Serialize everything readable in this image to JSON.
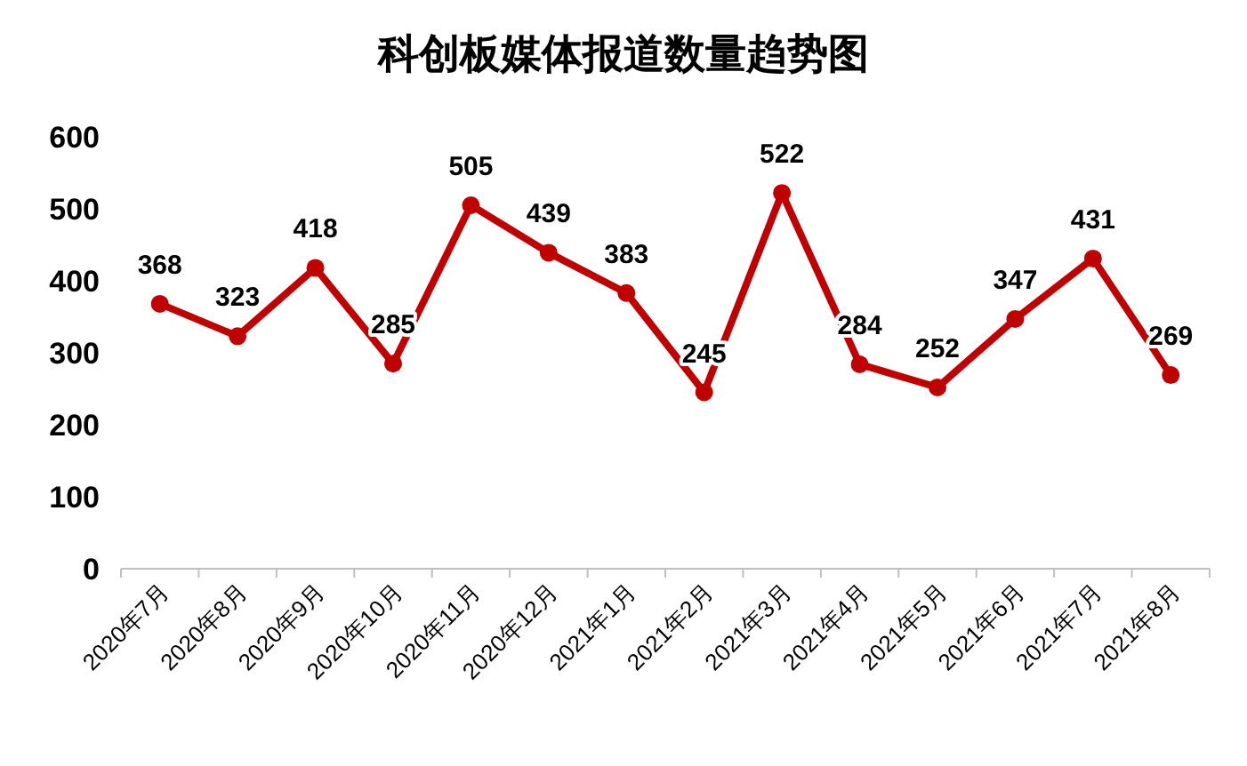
{
  "chart_data": {
    "type": "line",
    "title": "科创板媒体报道数量趋势图",
    "categories": [
      "2020年7月",
      "2020年8月",
      "2020年9月",
      "2020年10月",
      "2020年11月",
      "2020年12月",
      "2021年1月",
      "2021年2月",
      "2021年3月",
      "2021年4月",
      "2021年5月",
      "2021年6月",
      "2021年7月",
      "2021年8月"
    ],
    "values": [
      368,
      323,
      418,
      285,
      505,
      439,
      383,
      245,
      522,
      284,
      252,
      347,
      431,
      269
    ],
    "color": "#c00000",
    "ylim": [
      0,
      600
    ],
    "yticks": [
      0,
      100,
      200,
      300,
      400,
      500,
      600
    ],
    "data_labels": true,
    "marker": "circle",
    "grid": false
  }
}
